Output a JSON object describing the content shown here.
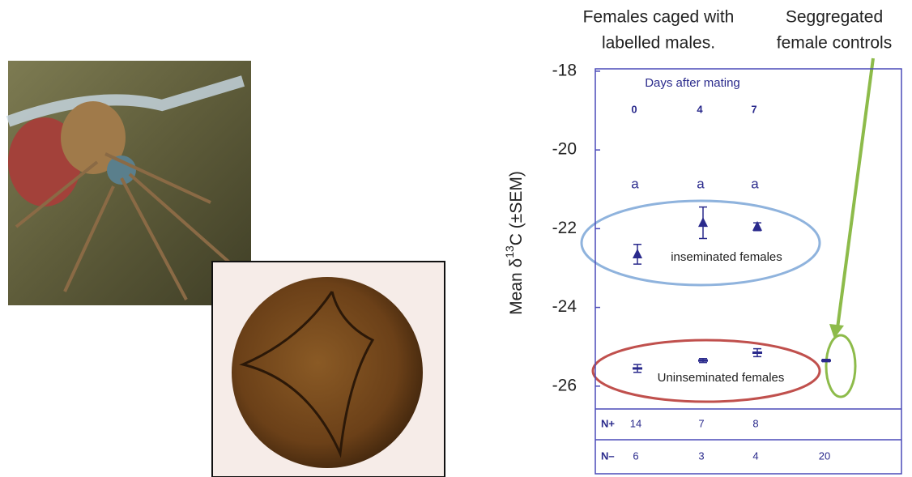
{
  "chart_data": {
    "type": "errorbar",
    "annotation_left": [
      "Females caged with",
      "labelled males."
    ],
    "annotation_right": [
      "Seggregated",
      "female controls"
    ],
    "ylabel": {
      "prefix": "Mean δ",
      "sup": "13",
      "suffix": "C (±SEM)"
    },
    "header": "Days after mating",
    "categories": [
      "0",
      "4",
      "7",
      null
    ],
    "letters": [
      "a",
      "a",
      "a",
      null
    ],
    "ylim": [
      -26.58,
      -17.94
    ],
    "yticks": [
      -26,
      -24,
      -22,
      -20,
      -18
    ],
    "series": [
      {
        "name": "inseminated females",
        "color": "#2a2a8c",
        "marker": "triangle",
        "values": [
          -22.65,
          -21.85,
          -21.95,
          null
        ],
        "errors": [
          0.25,
          0.4,
          0.1,
          null
        ]
      },
      {
        "name": "Uninseminated females",
        "color": "#2a2a8c",
        "marker": "dash",
        "values": [
          -25.55,
          -25.35,
          -25.15,
          -25.35
        ],
        "errors": [
          0.1,
          0.05,
          0.1,
          0.03
        ]
      }
    ],
    "table": [
      {
        "label": "N+",
        "values": [
          14,
          7,
          8,
          null
        ]
      },
      {
        "label": "N–",
        "values": [
          6,
          3,
          4,
          20
        ]
      }
    ]
  }
}
